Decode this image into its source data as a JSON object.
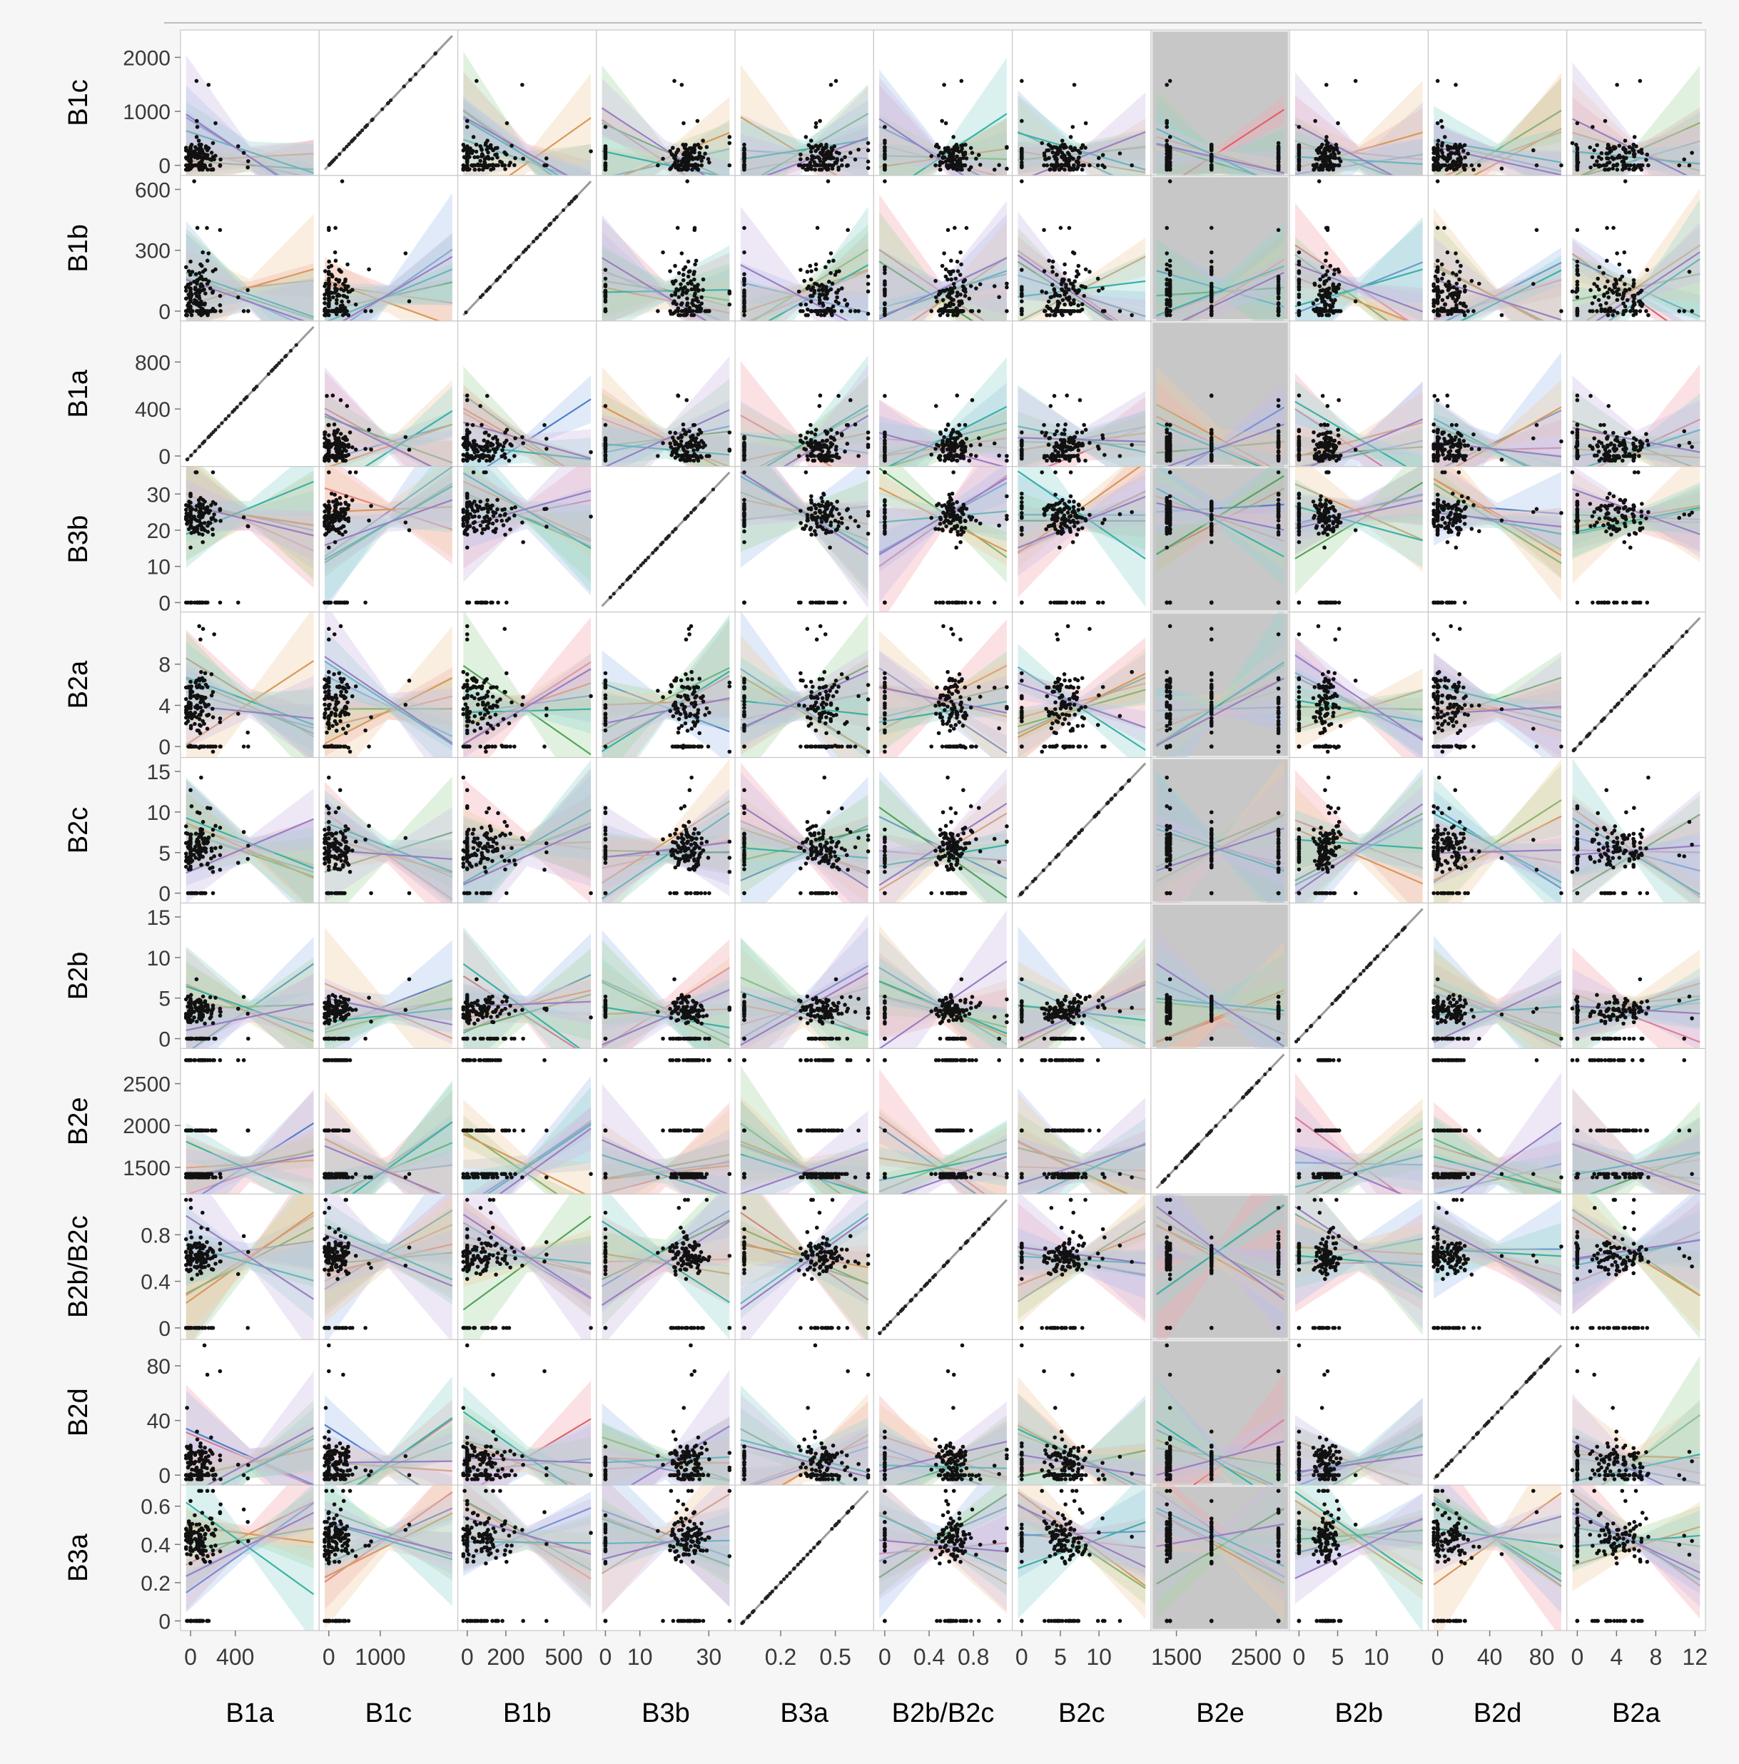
{
  "chart_data": {
    "type": "scatter",
    "title": "",
    "description_kind": "scatterplot matrix with linear fits and confidence bands per group",
    "columns": [
      "B1a",
      "B1c",
      "B1b",
      "B3b",
      "B3a",
      "B2b/B2c",
      "B2c",
      "B2e",
      "B2b",
      "B2d",
      "B2a"
    ],
    "rows": [
      "B1c",
      "B1b",
      "B1a",
      "B3b",
      "B2a",
      "B2c",
      "B2b",
      "B2e",
      "B2b/B2c",
      "B2d",
      "B3a"
    ],
    "axes": {
      "B1a": {
        "range": [
          -40,
          1100
        ],
        "ticks": [
          0,
          400
        ],
        "tick_labels": [
          "0",
          "400"
        ],
        "row_ticks": [
          0,
          400,
          800
        ],
        "row_tick_labels": [
          "0",
          "400",
          "800"
        ]
      },
      "B1c": {
        "range": [
          -80,
          2400
        ],
        "ticks": [
          0,
          1000
        ],
        "tick_labels": [
          "0",
          "1000"
        ],
        "row_ticks": [
          0,
          1000,
          2000
        ],
        "row_tick_labels": [
          "0",
          "1000",
          "2000"
        ]
      },
      "B1b": {
        "range": [
          -20,
          640
        ],
        "ticks": [
          0,
          200,
          500
        ],
        "tick_labels": [
          "0",
          "200",
          "500"
        ],
        "row_ticks": [
          0,
          300,
          600
        ],
        "row_tick_labels": [
          "0",
          "300",
          "600"
        ]
      },
      "B3b": {
        "range": [
          -1,
          36
        ],
        "ticks": [
          0,
          10,
          30
        ],
        "tick_labels": [
          "0",
          "10",
          "30"
        ],
        "row_ticks": [
          0,
          10,
          20,
          30
        ],
        "row_tick_labels": [
          "0",
          "10",
          "20",
          "30"
        ]
      },
      "B3a": {
        "range": [
          -0.02,
          0.68
        ],
        "ticks": [
          0.2,
          0.5
        ],
        "tick_labels": [
          "0.2",
          "0.5"
        ],
        "row_ticks": [
          0,
          0.2,
          0.4,
          0.6
        ],
        "row_tick_labels": [
          "0",
          "0.2",
          "0.4",
          "0.6"
        ]
      },
      "B2b/B2c": {
        "range": [
          -0.05,
          1.1
        ],
        "ticks": [
          0,
          0.4,
          0.8
        ],
        "tick_labels": [
          "0",
          "0.4",
          "0.8"
        ],
        "row_ticks": [
          0,
          0.4,
          0.8
        ],
        "row_tick_labels": [
          "0",
          "0.4",
          "0.8"
        ]
      },
      "B2c": {
        "range": [
          -0.5,
          16
        ],
        "ticks": [
          0,
          5,
          10
        ],
        "tick_labels": [
          "0",
          "5",
          "10"
        ],
        "row_ticks": [
          0,
          5,
          10,
          15
        ],
        "row_tick_labels": [
          "0",
          "5",
          "10",
          "15"
        ]
      },
      "B2e": {
        "range": [
          1250,
          2850
        ],
        "ticks": [
          1500,
          2500
        ],
        "tick_labels": [
          "1500",
          "2500"
        ],
        "row_ticks": [
          1500,
          2000,
          2500
        ],
        "row_tick_labels": [
          "1500",
          "2000",
          "2500"
        ]
      },
      "B2b": {
        "range": [
          -0.5,
          16
        ],
        "ticks": [
          0,
          5,
          10
        ],
        "tick_labels": [
          "0",
          "5",
          "10"
        ],
        "row_ticks": [
          0,
          5,
          10,
          15
        ],
        "row_tick_labels": [
          "0",
          "5",
          "10",
          "15"
        ]
      },
      "B2d": {
        "range": [
          -3,
          95
        ],
        "ticks": [
          0,
          40,
          80
        ],
        "tick_labels": [
          "0",
          "40",
          "80"
        ],
        "row_ticks": [
          0,
          40,
          80
        ],
        "row_tick_labels": [
          "0",
          "40",
          "80"
        ]
      },
      "B2a": {
        "range": [
          -0.5,
          12.5
        ],
        "ticks": [
          0,
          4,
          8,
          12
        ],
        "tick_labels": [
          "0",
          "4",
          "8",
          "12"
        ],
        "row_ticks": [
          0,
          4,
          8
        ],
        "row_tick_labels": [
          "0",
          "4",
          "8"
        ]
      }
    },
    "typical": {
      "B1a": 80,
      "B1c": 150,
      "B1b": 80,
      "B3b": 24,
      "B3a": 0.42,
      "B2b/B2c": 0.62,
      "B2c": 5.5,
      "B2e": 1450,
      "B2b": 3.5,
      "B2d": 8,
      "B2a": 4
    },
    "spread": {
      "B1a": 70,
      "B1c": 140,
      "B1b": 70,
      "B3b": 3,
      "B3a": 0.06,
      "B2b/B2c": 0.07,
      "B2c": 1.6,
      "B2e": 40,
      "B2b": 0.8,
      "B2d": 8,
      "B2a": 1.6
    },
    "group_levels": {
      "B2e": [
        1380,
        1420,
        1940,
        2780
      ]
    },
    "groups": [
      {
        "name": "group-red",
        "color": "#e2606e"
      },
      {
        "name": "group-blue",
        "color": "#4f7fc6"
      },
      {
        "name": "group-green",
        "color": "#55a35a"
      },
      {
        "name": "group-orange",
        "color": "#d9985a"
      },
      {
        "name": "group-teal",
        "color": "#3ab1a6"
      },
      {
        "name": "group-purple",
        "color": "#9a7ec4"
      }
    ],
    "band_colors": [
      "#f4a9b3",
      "#a8c4ea",
      "#a9d7a4",
      "#f2cfa6",
      "#98d8d0",
      "#cdbce6"
    ],
    "shaded_column": "B2e",
    "points_per_cell": 150,
    "xlabel": "",
    "ylabel": ""
  }
}
